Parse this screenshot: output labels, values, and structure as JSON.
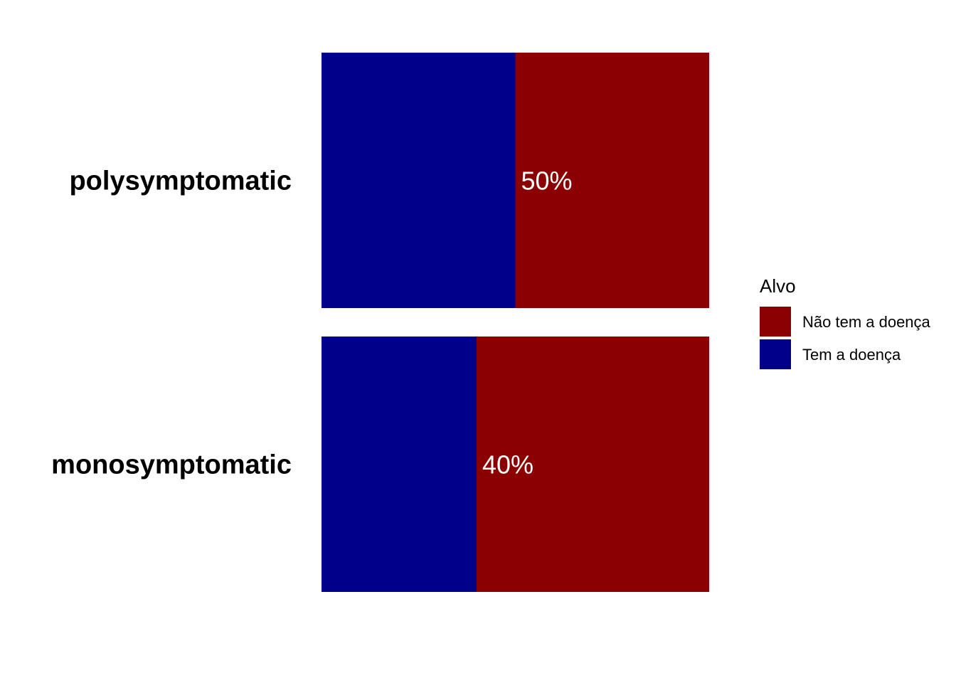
{
  "chart_data": {
    "type": "bar",
    "orientation": "horizontal",
    "stacked": true,
    "normalized": true,
    "categories": [
      "polysymptomatic",
      "monosymptomatic"
    ],
    "series": [
      {
        "name": "Tem a doença",
        "values": [
          50,
          40
        ],
        "color": "#00008b"
      },
      {
        "name": "Não tem a doença",
        "values": [
          50,
          60
        ],
        "color": "#8b0000"
      }
    ],
    "data_labels": [
      "50%",
      "40%"
    ],
    "xlim": [
      0,
      100
    ],
    "grid": false,
    "legend": {
      "title": "Alvo",
      "position": "right",
      "entries": [
        {
          "label": "Não tem a doença",
          "color": "#8b0000"
        },
        {
          "label": "Tem a doença",
          "color": "#00008b"
        }
      ]
    }
  }
}
